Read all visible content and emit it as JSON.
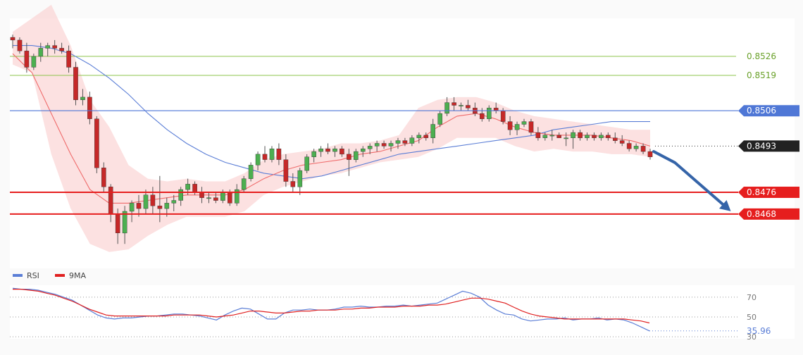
{
  "chart_data": [
    {
      "type": "candlestick",
      "grid": false,
      "ylim": [
        0.8448,
        0.854
      ],
      "candles": [
        [
          0.8533,
          0.8534,
          0.8529,
          0.8532
        ],
        [
          0.8532,
          0.8533,
          0.8527,
          0.8528
        ],
        [
          0.8528,
          0.8531,
          0.852,
          0.8522
        ],
        [
          0.8522,
          0.8527,
          0.8521,
          0.8526
        ],
        [
          0.8526,
          0.8531,
          0.8524,
          0.8529
        ],
        [
          0.8529,
          0.8531,
          0.8526,
          0.853
        ],
        [
          0.853,
          0.8532,
          0.8527,
          0.8529
        ],
        [
          0.8529,
          0.8531,
          0.8527,
          0.8528
        ],
        [
          0.8528,
          0.853,
          0.852,
          0.8522
        ],
        [
          0.8522,
          0.8524,
          0.8508,
          0.851
        ],
        [
          0.851,
          0.8514,
          0.8508,
          0.8511
        ],
        [
          0.8511,
          0.8513,
          0.8501,
          0.8503
        ],
        [
          0.8503,
          0.8504,
          0.8483,
          0.8485
        ],
        [
          0.8485,
          0.8487,
          0.8476,
          0.8478
        ],
        [
          0.8478,
          0.8479,
          0.8465,
          0.8468
        ],
        [
          0.8468,
          0.847,
          0.8457,
          0.8461
        ],
        [
          0.8461,
          0.8471,
          0.8457,
          0.8469
        ],
        [
          0.8469,
          0.8473,
          0.8465,
          0.8472
        ],
        [
          0.8472,
          0.8475,
          0.8467,
          0.847
        ],
        [
          0.847,
          0.8477,
          0.8468,
          0.8475
        ],
        [
          0.8475,
          0.8478,
          0.8468,
          0.8471
        ],
        [
          0.8471,
          0.8482,
          0.8465,
          0.847
        ],
        [
          0.847,
          0.8474,
          0.8467,
          0.8472
        ],
        [
          0.8472,
          0.8475,
          0.8469,
          0.8473
        ],
        [
          0.8473,
          0.8478,
          0.8471,
          0.8477
        ],
        [
          0.8477,
          0.8481,
          0.8475,
          0.8479
        ],
        [
          0.8479,
          0.848,
          0.8475,
          0.8476
        ],
        [
          0.8476,
          0.8478,
          0.8472,
          0.8474
        ],
        [
          0.8474,
          0.8476,
          0.8472,
          0.8474
        ],
        [
          0.8474,
          0.8476,
          0.8472,
          0.8473
        ],
        [
          0.8473,
          0.8477,
          0.8472,
          0.8476
        ],
        [
          0.8476,
          0.8477,
          0.8471,
          0.8472
        ],
        [
          0.8472,
          0.8479,
          0.8471,
          0.8477
        ],
        [
          0.8477,
          0.8482,
          0.8476,
          0.8481
        ],
        [
          0.8481,
          0.8487,
          0.848,
          0.8486
        ],
        [
          0.8486,
          0.8491,
          0.8484,
          0.849
        ],
        [
          0.849,
          0.8493,
          0.8487,
          0.8488
        ],
        [
          0.8488,
          0.8493,
          0.8487,
          0.8492
        ],
        [
          0.8492,
          0.8494,
          0.8486,
          0.8488
        ],
        [
          0.8488,
          0.849,
          0.8478,
          0.848
        ],
        [
          0.848,
          0.8483,
          0.8476,
          0.8478
        ],
        [
          0.8478,
          0.8485,
          0.8475,
          0.8484
        ],
        [
          0.8484,
          0.849,
          0.8483,
          0.8489
        ],
        [
          0.8489,
          0.8492,
          0.8487,
          0.8491
        ],
        [
          0.8491,
          0.8493,
          0.8489,
          0.8492
        ],
        [
          0.8492,
          0.8494,
          0.849,
          0.8491
        ],
        [
          0.8491,
          0.8493,
          0.8489,
          0.8492
        ],
        [
          0.8492,
          0.8493,
          0.8489,
          0.849
        ],
        [
          0.849,
          0.8492,
          0.8482,
          0.8488
        ],
        [
          0.8488,
          0.8492,
          0.8487,
          0.8491
        ],
        [
          0.8491,
          0.8493,
          0.8489,
          0.8492
        ],
        [
          0.8492,
          0.8494,
          0.849,
          0.8493
        ],
        [
          0.8493,
          0.8495,
          0.8491,
          0.8494
        ],
        [
          0.8494,
          0.8495,
          0.8492,
          0.8493
        ],
        [
          0.8493,
          0.8495,
          0.8491,
          0.8494
        ],
        [
          0.8494,
          0.8496,
          0.8492,
          0.8495
        ],
        [
          0.8495,
          0.8496,
          0.8493,
          0.8494
        ],
        [
          0.8494,
          0.8497,
          0.8493,
          0.8496
        ],
        [
          0.8496,
          0.8498,
          0.8494,
          0.8497
        ],
        [
          0.8497,
          0.8498,
          0.8495,
          0.8496
        ],
        [
          0.8496,
          0.8503,
          0.8494,
          0.8501
        ],
        [
          0.8501,
          0.8506,
          0.85,
          0.8505
        ],
        [
          0.8505,
          0.8511,
          0.8504,
          0.8509
        ],
        [
          0.8509,
          0.8511,
          0.8506,
          0.8508
        ],
        [
          0.8508,
          0.8509,
          0.8506,
          0.8508
        ],
        [
          0.8508,
          0.851,
          0.8506,
          0.8507
        ],
        [
          0.8507,
          0.8509,
          0.8504,
          0.8505
        ],
        [
          0.8505,
          0.8507,
          0.8502,
          0.8503
        ],
        [
          0.8503,
          0.8508,
          0.8502,
          0.8507
        ],
        [
          0.8507,
          0.8509,
          0.8505,
          0.8506
        ],
        [
          0.8506,
          0.8507,
          0.8501,
          0.8502
        ],
        [
          0.8502,
          0.8504,
          0.8497,
          0.8499
        ],
        [
          0.8499,
          0.8502,
          0.8497,
          0.8501
        ],
        [
          0.8501,
          0.8503,
          0.85,
          0.8502
        ],
        [
          0.8502,
          0.8503,
          0.8497,
          0.8498
        ],
        [
          0.8498,
          0.85,
          0.8495,
          0.8496
        ],
        [
          0.8496,
          0.8498,
          0.8495,
          0.8497
        ],
        [
          0.8497,
          0.8499,
          0.8495,
          0.8497
        ],
        [
          0.8497,
          0.8498,
          0.8496,
          0.8496
        ],
        [
          0.8496,
          0.8498,
          0.8493,
          0.8496
        ],
        [
          0.8496,
          0.8499,
          0.8492,
          0.8498
        ],
        [
          0.8498,
          0.8499,
          0.8495,
          0.8496
        ],
        [
          0.8496,
          0.8498,
          0.8495,
          0.8497
        ],
        [
          0.8497,
          0.8498,
          0.8495,
          0.8496
        ],
        [
          0.8496,
          0.8498,
          0.8495,
          0.8497
        ],
        [
          0.8497,
          0.8498,
          0.8495,
          0.8496
        ],
        [
          0.8496,
          0.8498,
          0.8494,
          0.8495
        ],
        [
          0.8495,
          0.8497,
          0.8493,
          0.8494
        ],
        [
          0.8494,
          0.8495,
          0.8491,
          0.8492
        ],
        [
          0.8492,
          0.8494,
          0.8491,
          0.8493
        ],
        [
          0.8493,
          0.8494,
          0.849,
          0.8491
        ],
        [
          0.8491,
          0.8492,
          0.8488,
          0.8489
        ]
      ],
      "ma_slow": [
        0.853,
        0.853,
        0.8529,
        0.8527,
        0.8523,
        0.8518,
        0.8512,
        0.8505,
        0.8499,
        0.8494,
        0.849,
        0.8487,
        0.8485,
        0.8483,
        0.8482,
        0.8481,
        0.8482,
        0.8484,
        0.8486,
        0.8488,
        0.849,
        0.8491,
        0.8492,
        0.8493,
        0.8494,
        0.8495,
        0.8496,
        0.8497,
        0.8499,
        0.85,
        0.8501,
        0.8502,
        0.8502,
        0.8502
      ],
      "ma_fast": [
        0.8527,
        0.852,
        0.8505,
        0.849,
        0.8477,
        0.8472,
        0.8472,
        0.8473,
        0.8474,
        0.8475,
        0.8475,
        0.8475,
        0.8477,
        0.8481,
        0.8484,
        0.8486,
        0.8487,
        0.8488,
        0.849,
        0.8491,
        0.8493,
        0.8495,
        0.85,
        0.8504,
        0.8505,
        0.8503,
        0.85,
        0.8498,
        0.8497,
        0.8497,
        0.8497,
        0.8496,
        0.8495,
        0.8493
      ],
      "bb_upper": [
        0.8535,
        0.854,
        0.8545,
        0.853,
        0.851,
        0.85,
        0.8486,
        0.8481,
        0.848,
        0.8481,
        0.848,
        0.848,
        0.8483,
        0.8488,
        0.849,
        0.8491,
        0.8492,
        0.8494,
        0.8494,
        0.8495,
        0.8497,
        0.8507,
        0.851,
        0.8511,
        0.8511,
        0.8509,
        0.8506,
        0.8504,
        0.8503,
        0.8502,
        0.8501,
        0.85,
        0.8499,
        0.8499
      ],
      "bb_lower": [
        0.8523,
        0.852,
        0.849,
        0.847,
        0.8457,
        0.8454,
        0.8455,
        0.846,
        0.8464,
        0.8467,
        0.8467,
        0.8467,
        0.8469,
        0.8475,
        0.8478,
        0.848,
        0.8482,
        0.8483,
        0.8485,
        0.8487,
        0.8488,
        0.8489,
        0.8492,
        0.8496,
        0.8496,
        0.8496,
        0.8493,
        0.8491,
        0.8492,
        0.8491,
        0.8491,
        0.849,
        0.849,
        0.8489
      ],
      "levels": [
        {
          "label": "0.8526",
          "value": 0.8526,
          "color": "#8bc34a",
          "style": "line"
        },
        {
          "label": "0.8519",
          "value": 0.8519,
          "color": "#8bc34a",
          "style": "line"
        },
        {
          "label": "0.8506",
          "value": 0.8506,
          "color": "#4f77d6",
          "style": "badge-blue"
        },
        {
          "label": "0.8493",
          "value": 0.8493,
          "color": "#222222",
          "style": "badge-dark-dotted"
        },
        {
          "label": "0.8476",
          "value": 0.8476,
          "color": "#e61e1e",
          "style": "badge-red"
        },
        {
          "label": "0.8468",
          "value": 0.8468,
          "color": "#e61e1e",
          "style": "badge-red"
        }
      ],
      "forecast_arrow": {
        "from": 0.8491,
        "mid": 0.8489,
        "to": 0.8469,
        "color": "#3564a8"
      },
      "colors": {
        "up": "#4caf50",
        "down": "#c62828",
        "band": "#f9c9c9",
        "ma_slow": "#5b7ed6",
        "ma_fast": "#ef6b6b"
      }
    },
    {
      "type": "line",
      "grid": false,
      "ylim": [
        28,
        82
      ],
      "legend_position": "top-left",
      "series": [
        {
          "name": "RSI",
          "color": "#5b7ed6",
          "values": [
            79,
            78,
            78,
            77,
            75,
            73,
            70,
            67,
            62,
            57,
            52,
            49,
            48,
            49,
            49,
            50,
            51,
            51,
            52,
            53,
            53,
            52,
            51,
            49,
            47,
            52,
            56,
            59,
            58,
            53,
            48,
            48,
            54,
            57,
            57,
            58,
            57,
            57,
            58,
            60,
            60,
            61,
            60,
            60,
            61,
            61,
            62,
            61,
            62,
            63,
            64,
            68,
            72,
            76,
            74,
            70,
            62,
            57,
            53,
            52,
            48,
            46,
            47,
            48,
            48,
            49,
            47,
            48,
            48,
            49,
            47,
            48,
            47,
            44,
            40,
            35.96
          ]
        },
        {
          "name": "9MA",
          "color": "#e02020",
          "values": [
            78,
            78,
            77,
            76,
            74,
            72,
            69,
            66,
            62,
            58,
            55,
            52,
            51,
            51,
            51,
            51,
            51,
            51,
            51,
            52,
            52,
            52,
            52,
            51,
            50,
            51,
            52,
            54,
            56,
            56,
            55,
            54,
            54,
            55,
            56,
            56,
            57,
            57,
            57,
            58,
            58,
            59,
            59,
            60,
            60,
            60,
            61,
            61,
            61,
            62,
            62,
            63,
            65,
            67,
            69,
            69,
            68,
            66,
            64,
            60,
            56,
            53,
            51,
            50,
            49,
            48,
            48,
            48,
            48,
            48,
            48,
            48,
            48,
            47,
            46,
            44
          ]
        }
      ],
      "y_ticks": [
        "70",
        "50",
        "30"
      ],
      "current_value_label": "35.96"
    }
  ]
}
